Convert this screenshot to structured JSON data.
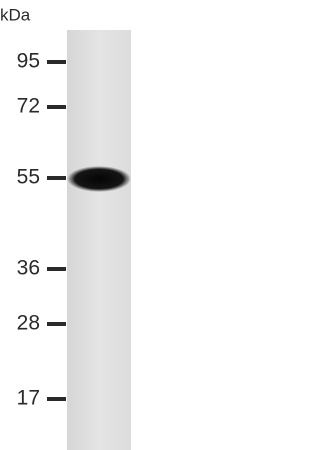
{
  "unit_label": "kDa",
  "markers": [
    {
      "label": "95"
    },
    {
      "label": "72"
    },
    {
      "label": "55"
    },
    {
      "label": "36"
    },
    {
      "label": "28"
    },
    {
      "label": "17"
    }
  ]
}
